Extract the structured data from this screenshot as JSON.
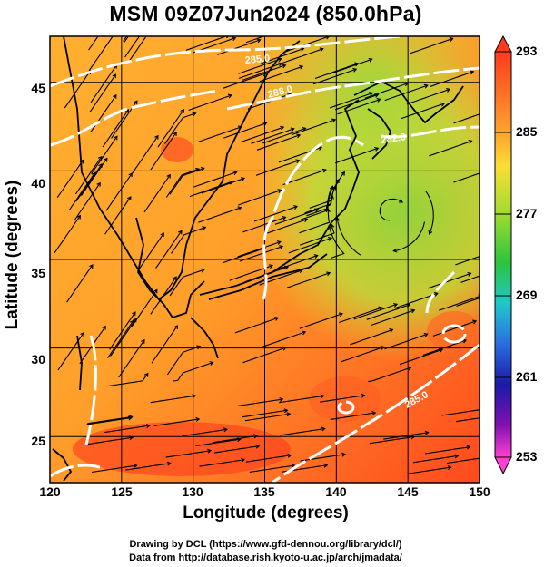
{
  "title": "MSM 09Z07Jun2024 (850.0hPa)",
  "x_axis": {
    "label": "Longitude (degrees)",
    "ticks": [
      120,
      125,
      130,
      135,
      140,
      145,
      150
    ]
  },
  "y_axis": {
    "label": "Latitude  (degrees)",
    "ticks": [
      25,
      30,
      35,
      40,
      45
    ]
  },
  "colorbar": {
    "ticks": [
      293,
      285,
      277,
      269,
      261,
      253
    ],
    "colors": [
      "#ff3a1e",
      "#ff9d2a",
      "#ffd33a",
      "#b4e62e",
      "#3ccc3c",
      "#20c8c8",
      "#2266e0",
      "#1a1aa8",
      "#8010b0",
      "#ff40d0"
    ]
  },
  "contour_labels": [
    "288.0",
    "282.0",
    "285.0",
    "285.0"
  ],
  "credits": {
    "line1": "Drawing by DCL (https://www.gfd-dennou.org/library/dcl/)",
    "line2": "Data from http://database.rish.kyoto-u.ac.jp/arch/jmadata/"
  }
}
